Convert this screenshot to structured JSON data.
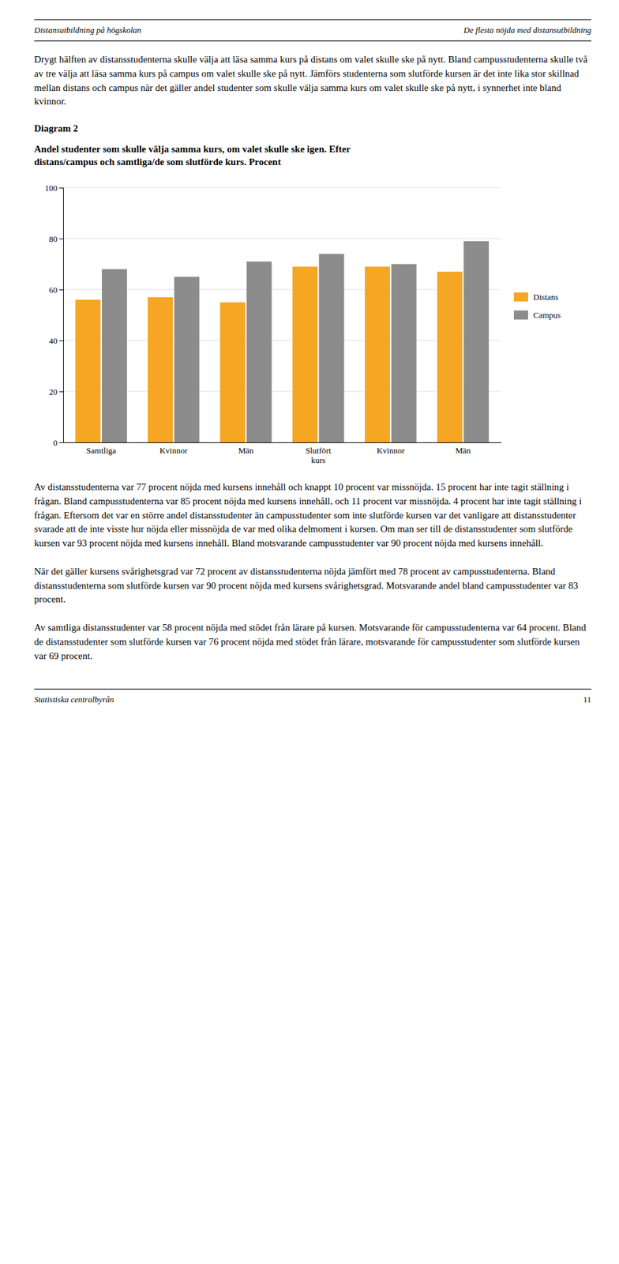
{
  "header_left": "Distansutbildning på högskolan",
  "header_right": "De flesta nöjda med distansutbildning",
  "intro_text": "Drygt hälften av distansstudenterna skulle välja att läsa samma kurs på distans om valet skulle ske på nytt. Bland campusstudenterna skulle två av tre välja att läsa samma kurs på campus om valet skulle ske på nytt. Jämförs studenterna som slutförde kursen är det inte lika stor skillnad mellan distans och campus när det gäller andel studenter som skulle välja samma kurs om valet skulle ske på nytt, i synnerhet inte bland kvinnor.",
  "diagram_label": "Diagram 2",
  "body_texts": [
    "Av distansstudenterna var 77 procent nöjda med kursens innehåll och knappt 10 procent var missnöjda. 15 procent har inte tagit ställning i frågan. Bland campusstudenterna var 85 procent nöjda med kursens innehåll, och 11 procent var missnöjda. 4 procent har inte tagit ställning i frågan.  Eftersom det var en större andel distansstudenter än campusstudenter som inte slutförde kursen var det vanligare att distansstudenter svarade att de inte visste hur nöjda eller missnöjda de var med olika delmoment i kursen. Om man ser till de distansstudenter som slutförde kursen var 93 procent nöjda med kursens innehåll. Bland motsvarande campusstudenter var 90 procent nöjda med kursens innehåll.",
    "När det gäller kursens svårighetsgrad var 72 procent av distansstudenterna nöjda jämfört med 78 procent av campusstudenterna. Bland distansstudenterna som slutförde kursen var 90 procent nöjda med kursens svårighetsgrad. Motsvarande andel bland campusstudenter var 83 procent.",
    "Av samtliga distansstudenter var 58 procent nöjda med stödet från lärare på kursen. Motsvarande för campusstudenterna var 64 procent. Bland de distansstudenter som slutförde kursen var 76 procent nöjda med stödet från lärare, motsvarande för campusstudenter som slutförde kursen var 69 procent."
  ],
  "footer_left": "Statistiska centralbyrån",
  "footer_right": "11",
  "chart_data": {
    "type": "bar",
    "title": "Andel studenter som skulle välja samma kurs, om valet skulle ske igen. Efter\ndistans/campus och samtliga/de som slutförde kurs. Procent",
    "categories": [
      "Samtliga",
      "Kvinnor",
      "Män",
      "Slutfört\nkurs",
      "Kvinnor",
      "Män"
    ],
    "series": [
      {
        "name": "Distans",
        "color": "#F5A623",
        "values": [
          56,
          57,
          55,
          69,
          69,
          67
        ]
      },
      {
        "name": "Campus",
        "color": "#8C8C8C",
        "values": [
          68,
          65,
          71,
          74,
          70,
          79
        ]
      }
    ],
    "ylim": [
      0,
      100
    ],
    "yticks": [
      0,
      20,
      40,
      60,
      80,
      100
    ],
    "grid": true,
    "legend": "right"
  }
}
